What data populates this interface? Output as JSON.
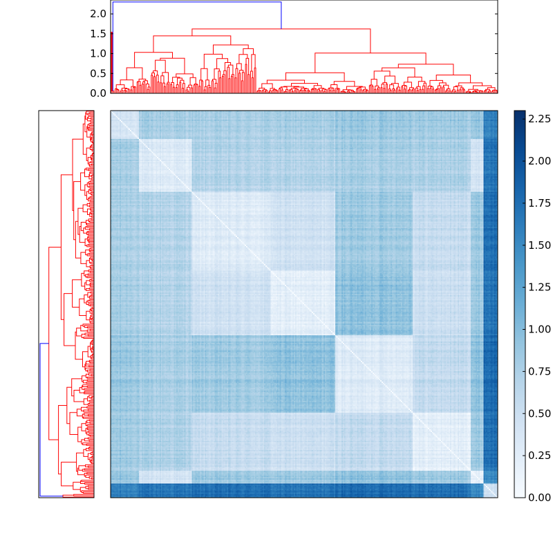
{
  "chart_data": [
    {
      "type": "dendrogram",
      "orientation": "top",
      "yticks": [
        "0.0",
        "0.5",
        "1.0",
        "1.5",
        "2.0"
      ],
      "ylim": [
        0,
        2.35
      ],
      "n_leaves": 300,
      "top_merge_height": 2.3,
      "root_children_heights": [
        0.06,
        1.55
      ],
      "major_merge_heights": [
        1.55,
        1.22,
        1.0,
        0.82,
        0.75,
        0.65,
        0.6,
        0.55,
        0.47,
        0.42,
        0.35,
        0.3
      ],
      "colors": {
        "above_threshold": "#0000ff",
        "cluster": "#ff0000",
        "outlier": "#00a000"
      }
    },
    {
      "type": "dendrogram",
      "orientation": "left",
      "n_leaves": 300,
      "colors": {
        "above_threshold": "#0000ff",
        "cluster": "#ff0000",
        "outlier": "#00a000"
      }
    },
    {
      "type": "heatmap",
      "matrix": "pairwise distance (symmetric, zero diagonal)",
      "n_rows": 300,
      "n_cols": 300,
      "colormap": "Blues",
      "vmin": 0.0,
      "vmax": 2.3,
      "colorbar_ticks": [
        "0.00",
        "0.25",
        "0.50",
        "0.75",
        "1.00",
        "1.25",
        "1.50",
        "1.75",
        "2.00",
        "2.25"
      ],
      "blocks_fraction": [
        0.0,
        0.075,
        0.21,
        0.415,
        0.58,
        0.78,
        0.93,
        0.965,
        1.0
      ],
      "block_mean_distance": [
        [
          0.42,
          0.8,
          0.78,
          0.8,
          0.9,
          0.85,
          0.9,
          1.6
        ],
        [
          0.8,
          0.3,
          0.7,
          0.7,
          0.8,
          0.75,
          0.4,
          1.7
        ],
        [
          0.78,
          0.7,
          0.28,
          0.45,
          0.85,
          0.55,
          0.85,
          1.75
        ],
        [
          0.8,
          0.7,
          0.45,
          0.22,
          0.95,
          0.5,
          0.85,
          1.7
        ],
        [
          0.9,
          0.8,
          0.85,
          0.95,
          0.32,
          0.6,
          0.95,
          1.8
        ],
        [
          0.85,
          0.75,
          0.55,
          0.5,
          0.6,
          0.24,
          0.85,
          1.75
        ],
        [
          0.9,
          0.4,
          0.85,
          0.85,
          0.95,
          0.85,
          0.2,
          1.5
        ],
        [
          1.6,
          1.7,
          1.75,
          1.7,
          1.8,
          1.75,
          1.5,
          0.5
        ]
      ]
    }
  ]
}
